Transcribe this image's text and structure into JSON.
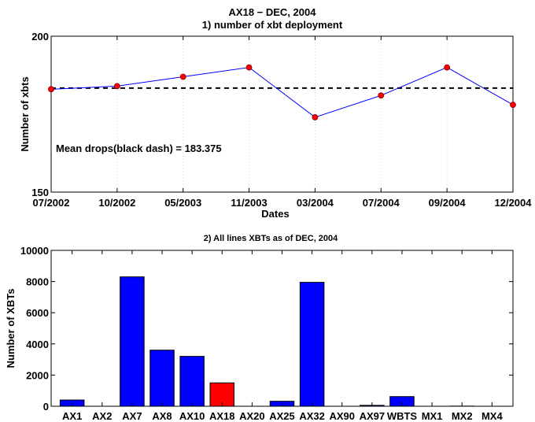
{
  "chart_data": [
    {
      "type": "line",
      "title": "AX18 − DEC, 2004",
      "subtitle": "1) number of xbt deployment",
      "xlabel": "Dates",
      "ylabel": "Number of xbts",
      "x": [
        "07/2002",
        "10/2002",
        "05/2003",
        "11/2003",
        "03/2004",
        "07/2004",
        "09/2004",
        "12/2004"
      ],
      "series": [
        {
          "values": [
            183,
            184,
            187,
            190,
            174,
            181,
            190,
            178
          ],
          "color": "#0000ff",
          "marker_color": "#ff0000"
        }
      ],
      "mean_line": {
        "value": 183.375,
        "color": "#000000",
        "style": "dashed"
      },
      "annotation": "Mean drops(black dash) = 183.375",
      "ylim": [
        150,
        200
      ],
      "yticks": [
        "150",
        "200"
      ],
      "grid": "vertical dotted"
    },
    {
      "type": "bar",
      "title": "2) All lines XBTs as of DEC, 2004",
      "xlabel": "",
      "ylabel": "Number of XBTs",
      "categories": [
        "AX1",
        "AX2",
        "AX7",
        "AX8",
        "AX10",
        "AX18",
        "AX20",
        "AX25",
        "AX32",
        "AX90",
        "AX97",
        "WBTS",
        "MX1",
        "MX2",
        "MX4"
      ],
      "values": [
        400,
        0,
        8300,
        3600,
        3200,
        1500,
        0,
        320,
        7950,
        0,
        60,
        620,
        0,
        10,
        0
      ],
      "colors": [
        "#0000ff",
        "#0000ff",
        "#0000ff",
        "#0000ff",
        "#0000ff",
        "#ff0000",
        "#0000ff",
        "#0000ff",
        "#0000ff",
        "#0000ff",
        "#0000ff",
        "#0000ff",
        "#0000ff",
        "#0000ff",
        "#0000ff"
      ],
      "ylim": [
        0,
        10000
      ],
      "yticks": [
        "0",
        "2000",
        "4000",
        "6000",
        "8000",
        "10000"
      ]
    }
  ]
}
